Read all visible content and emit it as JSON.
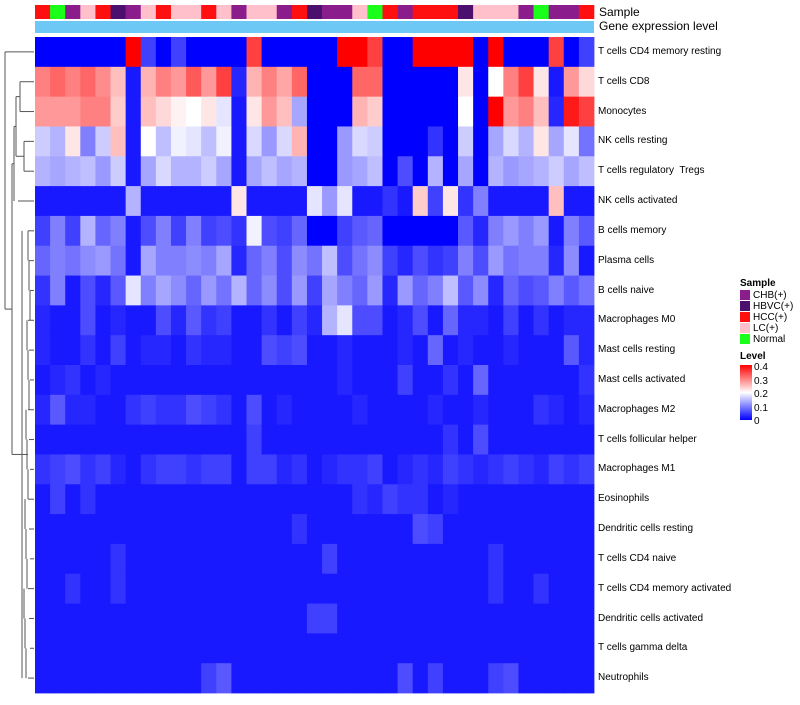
{
  "chart_data": {
    "type": "heatmap",
    "title": "",
    "annotation_tracks": [
      "Sample",
      "Gene expression level"
    ],
    "sample_annotation": [
      "HCC(+)",
      "Normal",
      "CHB(+)",
      "LC(+)",
      "HCC(+)",
      "HBVC(+)",
      "CHB(+)",
      "LC(+)",
      "HCC(+)",
      "LC(+)",
      "LC(+)",
      "HCC(+)",
      "LC(+)",
      "CHB(+)",
      "LC(+)",
      "LC(+)",
      "CHB(+)",
      "HCC(+)",
      "HBVC(+)",
      "CHB(+)",
      "CHB(+)",
      "LC(+)",
      "Normal",
      "HCC(+)",
      "CHB(+)",
      "HCC(+)",
      "HCC(+)",
      "HCC(+)",
      "HBVC(+)",
      "LC(+)",
      "LC(+)",
      "LC(+)",
      "CHB(+)",
      "Normal",
      "CHB(+)",
      "CHB(+)",
      "HCC(+)"
    ],
    "rows": [
      "T cells CD4 memory resting",
      "T cells CD8",
      "Monocytes",
      "NK cells resting",
      "T cells regulatory  Tregs",
      "NK cells activated",
      "B cells memory",
      "Plasma cells",
      "B cells naive",
      "Macrophages M0",
      "Mast cells resting",
      "Mast cells activated",
      "Macrophages M2",
      "T cells follicular helper",
      "Macrophages M1",
      "Eosinophils",
      "Dendritic cells resting",
      "T cells CD4 naive",
      "T cells CD4 memory activated",
      "Dendritic cells activated",
      "T cells gamma delta",
      "Neutrophils"
    ],
    "values": [
      [
        0.0,
        0.0,
        0.0,
        0.0,
        0.0,
        0.0,
        0.4,
        0.05,
        0.0,
        0.05,
        0.0,
        0.0,
        0.0,
        0.0,
        0.35,
        0.0,
        0.0,
        0.0,
        0.0,
        0.0,
        0.4,
        0.4,
        0.35,
        0.0,
        0.0,
        0.4,
        0.4,
        0.4,
        0.4,
        0.0,
        0.4,
        0.0,
        0.0,
        0.0,
        0.35,
        0.0,
        0.05
      ],
      [
        0.3,
        0.32,
        0.3,
        0.32,
        0.29,
        0.25,
        0.02,
        0.26,
        0.3,
        0.28,
        0.33,
        0.28,
        0.35,
        0.03,
        0.26,
        0.3,
        0.27,
        0.32,
        0.0,
        0.0,
        0.0,
        0.32,
        0.32,
        0.0,
        0.0,
        0.0,
        0.0,
        0.0,
        0.22,
        0.0,
        0.2,
        0.3,
        0.35,
        0.22,
        0.02,
        0.28,
        0.23
      ],
      [
        0.28,
        0.28,
        0.28,
        0.3,
        0.3,
        0.24,
        0.02,
        0.25,
        0.23,
        0.21,
        0.2,
        0.22,
        0.18,
        0.02,
        0.22,
        0.28,
        0.25,
        0.13,
        0.0,
        0.0,
        0.0,
        0.26,
        0.24,
        0.0,
        0.0,
        0.0,
        0.0,
        0.0,
        0.2,
        0.0,
        0.4,
        0.28,
        0.3,
        0.25,
        0.03,
        0.38,
        0.35
      ],
      [
        0.16,
        0.14,
        0.22,
        0.1,
        0.16,
        0.25,
        0.02,
        0.2,
        0.15,
        0.19,
        0.18,
        0.15,
        0.19,
        0.02,
        0.17,
        0.12,
        0.17,
        0.26,
        0.0,
        0.0,
        0.12,
        0.17,
        0.16,
        0.0,
        0.0,
        0.0,
        0.04,
        0.0,
        0.16,
        0.0,
        0.13,
        0.17,
        0.14,
        0.22,
        0.13,
        0.18,
        0.09
      ],
      [
        0.14,
        0.13,
        0.14,
        0.15,
        0.12,
        0.16,
        0.02,
        0.13,
        0.17,
        0.14,
        0.14,
        0.16,
        0.13,
        0.02,
        0.13,
        0.15,
        0.13,
        0.14,
        0.0,
        0.0,
        0.12,
        0.13,
        0.15,
        0.0,
        0.06,
        0.0,
        0.14,
        0.0,
        0.13,
        0.0,
        0.14,
        0.12,
        0.13,
        0.14,
        0.16,
        0.13,
        0.15
      ],
      [
        0.02,
        0.02,
        0.02,
        0.02,
        0.02,
        0.02,
        0.14,
        0.02,
        0.02,
        0.02,
        0.02,
        0.02,
        0.02,
        0.22,
        0.02,
        0.02,
        0.02,
        0.02,
        0.18,
        0.12,
        0.18,
        0.02,
        0.02,
        0.04,
        0.02,
        0.24,
        0.05,
        0.22,
        0.04,
        0.1,
        0.02,
        0.02,
        0.02,
        0.02,
        0.25,
        0.02,
        0.02
      ],
      [
        0.05,
        0.1,
        0.05,
        0.14,
        0.08,
        0.1,
        0.02,
        0.06,
        0.1,
        0.05,
        0.1,
        0.05,
        0.06,
        0.04,
        0.19,
        0.06,
        0.05,
        0.08,
        0.0,
        0.0,
        0.05,
        0.07,
        0.08,
        0.0,
        0.0,
        0.0,
        0.0,
        0.0,
        0.07,
        0.03,
        0.1,
        0.12,
        0.1,
        0.12,
        0.02,
        0.1,
        0.07
      ],
      [
        0.08,
        0.1,
        0.09,
        0.11,
        0.12,
        0.09,
        0.02,
        0.13,
        0.1,
        0.1,
        0.11,
        0.1,
        0.13,
        0.03,
        0.08,
        0.1,
        0.06,
        0.11,
        0.09,
        0.15,
        0.06,
        0.09,
        0.11,
        0.05,
        0.03,
        0.06,
        0.04,
        0.05,
        0.1,
        0.06,
        0.12,
        0.09,
        0.1,
        0.1,
        0.03,
        0.11,
        0.02
      ],
      [
        0.04,
        0.1,
        0.02,
        0.06,
        0.03,
        0.07,
        0.18,
        0.1,
        0.13,
        0.11,
        0.08,
        0.12,
        0.09,
        0.14,
        0.08,
        0.11,
        0.06,
        0.12,
        0.05,
        0.13,
        0.1,
        0.08,
        0.12,
        0.03,
        0.12,
        0.08,
        0.1,
        0.15,
        0.07,
        0.11,
        0.03,
        0.08,
        0.06,
        0.07,
        0.1,
        0.07,
        0.09
      ],
      [
        0.03,
        0.02,
        0.02,
        0.06,
        0.02,
        0.03,
        0.02,
        0.02,
        0.06,
        0.03,
        0.07,
        0.04,
        0.05,
        0.02,
        0.02,
        0.04,
        0.02,
        0.05,
        0.03,
        0.14,
        0.18,
        0.06,
        0.06,
        0.02,
        0.03,
        0.06,
        0.02,
        0.08,
        0.03,
        0.03,
        0.02,
        0.05,
        0.02,
        0.04,
        0.02,
        0.03,
        0.03
      ],
      [
        0.03,
        0.02,
        0.02,
        0.04,
        0.02,
        0.05,
        0.02,
        0.03,
        0.03,
        0.02,
        0.04,
        0.03,
        0.03,
        0.02,
        0.02,
        0.06,
        0.05,
        0.06,
        0.02,
        0.02,
        0.03,
        0.02,
        0.02,
        0.02,
        0.03,
        0.02,
        0.08,
        0.02,
        0.03,
        0.02,
        0.02,
        0.03,
        0.02,
        0.02,
        0.02,
        0.07,
        0.03
      ],
      [
        0.02,
        0.03,
        0.04,
        0.02,
        0.03,
        0.02,
        0.02,
        0.02,
        0.02,
        0.02,
        0.02,
        0.02,
        0.02,
        0.02,
        0.02,
        0.02,
        0.02,
        0.02,
        0.02,
        0.02,
        0.03,
        0.02,
        0.02,
        0.02,
        0.05,
        0.02,
        0.02,
        0.04,
        0.02,
        0.08,
        0.02,
        0.02,
        0.02,
        0.02,
        0.02,
        0.02,
        0.04
      ],
      [
        0.03,
        0.07,
        0.03,
        0.03,
        0.02,
        0.02,
        0.04,
        0.05,
        0.04,
        0.04,
        0.06,
        0.05,
        0.04,
        0.02,
        0.06,
        0.02,
        0.03,
        0.02,
        0.02,
        0.02,
        0.02,
        0.03,
        0.02,
        0.02,
        0.02,
        0.02,
        0.03,
        0.02,
        0.02,
        0.03,
        0.02,
        0.02,
        0.02,
        0.04,
        0.03,
        0.02,
        0.03
      ],
      [
        0.02,
        0.02,
        0.02,
        0.02,
        0.02,
        0.02,
        0.02,
        0.02,
        0.02,
        0.02,
        0.02,
        0.02,
        0.02,
        0.02,
        0.05,
        0.02,
        0.02,
        0.02,
        0.02,
        0.02,
        0.02,
        0.02,
        0.02,
        0.02,
        0.02,
        0.02,
        0.02,
        0.04,
        0.02,
        0.06,
        0.02,
        0.02,
        0.02,
        0.02,
        0.02,
        0.02,
        0.02
      ],
      [
        0.04,
        0.05,
        0.06,
        0.04,
        0.05,
        0.03,
        0.02,
        0.04,
        0.05,
        0.05,
        0.04,
        0.05,
        0.05,
        0.02,
        0.05,
        0.05,
        0.03,
        0.04,
        0.02,
        0.03,
        0.04,
        0.04,
        0.05,
        0.02,
        0.03,
        0.04,
        0.03,
        0.05,
        0.04,
        0.03,
        0.04,
        0.05,
        0.04,
        0.03,
        0.05,
        0.04,
        0.05
      ],
      [
        0.02,
        0.05,
        0.02,
        0.04,
        0.02,
        0.02,
        0.02,
        0.02,
        0.02,
        0.02,
        0.02,
        0.02,
        0.02,
        0.02,
        0.02,
        0.02,
        0.02,
        0.02,
        0.02,
        0.02,
        0.02,
        0.04,
        0.03,
        0.05,
        0.04,
        0.04,
        0.02,
        0.03,
        0.02,
        0.02,
        0.02,
        0.02,
        0.02,
        0.02,
        0.02,
        0.02,
        0.02
      ],
      [
        0.02,
        0.02,
        0.02,
        0.02,
        0.02,
        0.02,
        0.02,
        0.02,
        0.02,
        0.02,
        0.02,
        0.02,
        0.02,
        0.02,
        0.02,
        0.02,
        0.02,
        0.04,
        0.02,
        0.02,
        0.02,
        0.02,
        0.02,
        0.02,
        0.02,
        0.06,
        0.05,
        0.02,
        0.02,
        0.02,
        0.02,
        0.02,
        0.02,
        0.02,
        0.02,
        0.02,
        0.02
      ],
      [
        0.02,
        0.02,
        0.02,
        0.02,
        0.02,
        0.04,
        0.02,
        0.02,
        0.02,
        0.02,
        0.02,
        0.02,
        0.02,
        0.02,
        0.02,
        0.02,
        0.02,
        0.02,
        0.02,
        0.05,
        0.02,
        0.02,
        0.02,
        0.02,
        0.02,
        0.02,
        0.02,
        0.02,
        0.02,
        0.02,
        0.04,
        0.02,
        0.02,
        0.02,
        0.02,
        0.02,
        0.02
      ],
      [
        0.02,
        0.02,
        0.04,
        0.02,
        0.02,
        0.04,
        0.02,
        0.02,
        0.02,
        0.02,
        0.02,
        0.02,
        0.02,
        0.02,
        0.02,
        0.02,
        0.02,
        0.02,
        0.02,
        0.02,
        0.02,
        0.02,
        0.02,
        0.02,
        0.02,
        0.02,
        0.02,
        0.02,
        0.02,
        0.02,
        0.04,
        0.02,
        0.02,
        0.04,
        0.02,
        0.02,
        0.02
      ],
      [
        0.02,
        0.02,
        0.02,
        0.02,
        0.02,
        0.02,
        0.02,
        0.02,
        0.02,
        0.02,
        0.02,
        0.02,
        0.02,
        0.02,
        0.02,
        0.02,
        0.02,
        0.02,
        0.05,
        0.05,
        0.02,
        0.02,
        0.02,
        0.02,
        0.02,
        0.02,
        0.02,
        0.02,
        0.02,
        0.02,
        0.02,
        0.02,
        0.02,
        0.02,
        0.02,
        0.02,
        0.02
      ],
      [
        0.02,
        0.02,
        0.02,
        0.02,
        0.02,
        0.02,
        0.02,
        0.02,
        0.02,
        0.02,
        0.02,
        0.02,
        0.02,
        0.02,
        0.02,
        0.02,
        0.02,
        0.02,
        0.02,
        0.02,
        0.02,
        0.02,
        0.02,
        0.02,
        0.02,
        0.02,
        0.02,
        0.02,
        0.02,
        0.02,
        0.02,
        0.02,
        0.02,
        0.02,
        0.02,
        0.02,
        0.02
      ],
      [
        0.02,
        0.02,
        0.02,
        0.02,
        0.02,
        0.02,
        0.02,
        0.02,
        0.02,
        0.02,
        0.02,
        0.05,
        0.07,
        0.02,
        0.02,
        0.02,
        0.02,
        0.02,
        0.02,
        0.02,
        0.02,
        0.02,
        0.02,
        0.02,
        0.06,
        0.02,
        0.05,
        0.02,
        0.02,
        0.02,
        0.05,
        0.06,
        0.02,
        0.02,
        0.02,
        0.02,
        0.02
      ]
    ],
    "value_range": [
      0,
      0.4
    ],
    "color_scale": {
      "low": "#0000ff",
      "mid": "#ffffff",
      "high": "#ff0000"
    },
    "legend": {
      "sample": {
        "title": "Sample",
        "items": [
          {
            "label": "CHB(+)",
            "color": "#8b1c8b"
          },
          {
            "label": "HBVC(+)",
            "color": "#4b0f6e"
          },
          {
            "label": "HCC(+)",
            "color": "#ff1010"
          },
          {
            "label": "LC(+)",
            "color": "#ffc0cb"
          },
          {
            "label": "Normal",
            "color": "#1aff1a"
          }
        ]
      },
      "level": {
        "title": "Level",
        "ticks": [
          "0.4",
          "0.3",
          "0.2",
          "0.1",
          "0"
        ]
      }
    },
    "gene_expression_color": "#6ec8f5",
    "dendrogram": "row clustering tree on the left"
  }
}
